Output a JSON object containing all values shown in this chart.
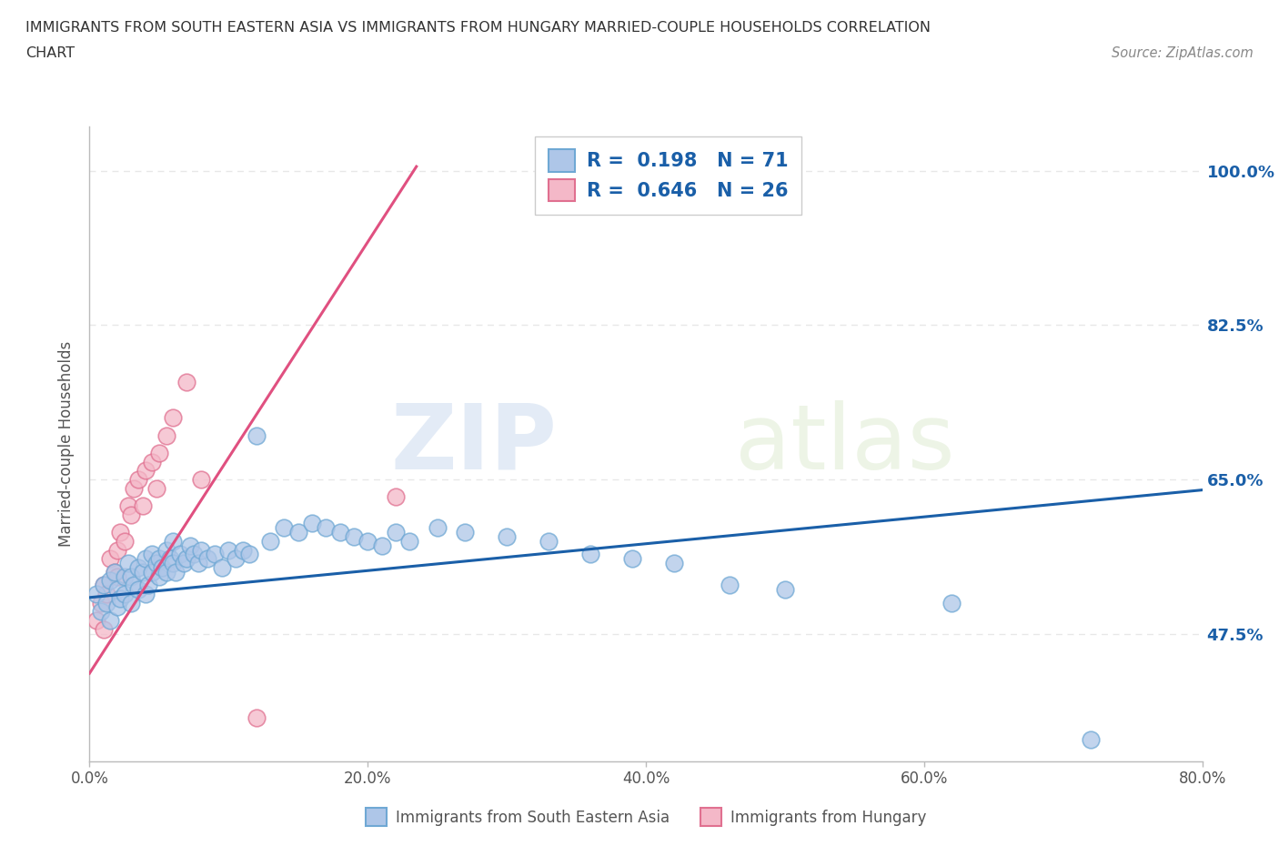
{
  "title_line1": "IMMIGRANTS FROM SOUTH EASTERN ASIA VS IMMIGRANTS FROM HUNGARY MARRIED-COUPLE HOUSEHOLDS CORRELATION",
  "title_line2": "CHART",
  "source_text": "Source: ZipAtlas.com",
  "ylabel": "Married-couple Households",
  "xlim": [
    0.0,
    0.8
  ],
  "ylim": [
    0.33,
    1.05
  ],
  "yticks": [
    0.475,
    0.65,
    0.825,
    1.0
  ],
  "ytick_labels": [
    "47.5%",
    "65.0%",
    "82.5%",
    "100.0%"
  ],
  "xticks": [
    0.0,
    0.2,
    0.4,
    0.6,
    0.8
  ],
  "xtick_labels": [
    "0.0%",
    "20.0%",
    "40.0%",
    "60.0%",
    "80.0%"
  ],
  "watermark_zip": "ZIP",
  "watermark_atlas": "atlas",
  "series1_name": "Immigrants from South Eastern Asia",
  "series1_color": "#aec6e8",
  "series1_edge_color": "#6fa8d4",
  "series1_line_color": "#1a5fa8",
  "series1_R": 0.198,
  "series1_N": 71,
  "series2_name": "Immigrants from Hungary",
  "series2_color": "#f4b8c8",
  "series2_edge_color": "#e07090",
  "series2_line_color": "#e05080",
  "series2_R": 0.646,
  "series2_N": 26,
  "legend_color": "#1a5fa8",
  "grid_color": "#e8e8e8",
  "background_color": "#ffffff",
  "title_color": "#333333",
  "source_color": "#888888",
  "s1_x": [
    0.005,
    0.008,
    0.01,
    0.012,
    0.015,
    0.015,
    0.018,
    0.02,
    0.02,
    0.022,
    0.025,
    0.025,
    0.028,
    0.03,
    0.03,
    0.032,
    0.035,
    0.035,
    0.038,
    0.04,
    0.04,
    0.042,
    0.045,
    0.045,
    0.048,
    0.05,
    0.05,
    0.052,
    0.055,
    0.055,
    0.058,
    0.06,
    0.06,
    0.062,
    0.065,
    0.068,
    0.07,
    0.072,
    0.075,
    0.078,
    0.08,
    0.085,
    0.09,
    0.095,
    0.1,
    0.105,
    0.11,
    0.115,
    0.12,
    0.13,
    0.14,
    0.15,
    0.16,
    0.17,
    0.18,
    0.19,
    0.2,
    0.21,
    0.22,
    0.23,
    0.25,
    0.27,
    0.3,
    0.33,
    0.36,
    0.39,
    0.42,
    0.46,
    0.5,
    0.62,
    0.72
  ],
  "s1_y": [
    0.52,
    0.5,
    0.53,
    0.51,
    0.49,
    0.535,
    0.545,
    0.505,
    0.525,
    0.515,
    0.54,
    0.52,
    0.555,
    0.51,
    0.54,
    0.53,
    0.525,
    0.55,
    0.545,
    0.52,
    0.56,
    0.53,
    0.545,
    0.565,
    0.555,
    0.54,
    0.56,
    0.55,
    0.545,
    0.57,
    0.56,
    0.555,
    0.58,
    0.545,
    0.565,
    0.555,
    0.56,
    0.575,
    0.565,
    0.555,
    0.57,
    0.56,
    0.565,
    0.55,
    0.57,
    0.56,
    0.57,
    0.565,
    0.7,
    0.58,
    0.595,
    0.59,
    0.6,
    0.595,
    0.59,
    0.585,
    0.58,
    0.575,
    0.59,
    0.58,
    0.595,
    0.59,
    0.585,
    0.58,
    0.565,
    0.56,
    0.555,
    0.53,
    0.525,
    0.51,
    0.355
  ],
  "s2_x": [
    0.005,
    0.008,
    0.01,
    0.01,
    0.012,
    0.015,
    0.018,
    0.02,
    0.02,
    0.022,
    0.025,
    0.028,
    0.03,
    0.032,
    0.035,
    0.038,
    0.04,
    0.045,
    0.048,
    0.05,
    0.055,
    0.06,
    0.07,
    0.08,
    0.12,
    0.22
  ],
  "s2_y": [
    0.49,
    0.51,
    0.48,
    0.53,
    0.52,
    0.56,
    0.545,
    0.57,
    0.54,
    0.59,
    0.58,
    0.62,
    0.61,
    0.64,
    0.65,
    0.62,
    0.66,
    0.67,
    0.64,
    0.68,
    0.7,
    0.72,
    0.76,
    0.65,
    0.38,
    0.63
  ],
  "s1_trend_x": [
    0.0,
    0.8
  ],
  "s1_trend_y": [
    0.516,
    0.638
  ],
  "s2_trend_x": [
    0.0,
    0.235
  ],
  "s2_trend_y": [
    0.43,
    1.005
  ]
}
